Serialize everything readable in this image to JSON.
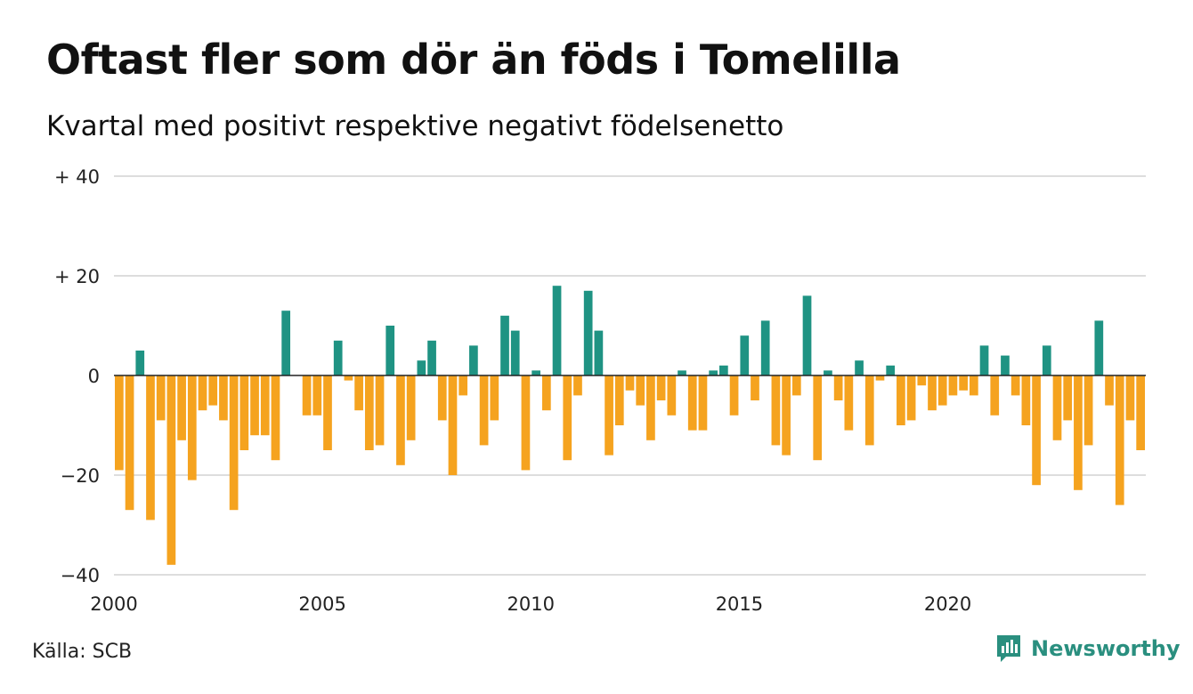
{
  "header": {
    "title": "Oftast fler som dör än föds i Tomelilla",
    "subtitle": "Kvartal med positivt respektive negativt födelsenetto"
  },
  "footer": {
    "source": "Källa: SCB",
    "brand": "Newsworthy",
    "brand_icon": "newsworthy-logo-icon"
  },
  "colors": {
    "positive": "#1f9383",
    "negative": "#f5a31f",
    "grid": "#dddddd",
    "zero_line": "#222222"
  },
  "chart_data": {
    "type": "bar",
    "title": "Oftast fler som dör än föds i Tomelilla",
    "subtitle": "Kvartal med positivt respektive negativt födelsenetto",
    "xlabel": "",
    "ylabel": "",
    "x_start": 2000,
    "periods_per_year": 4,
    "ylim": [
      -40,
      40
    ],
    "grid": true,
    "legend": "none",
    "y_ticks": [
      {
        "value": 40,
        "label": "+ 40"
      },
      {
        "value": 20,
        "label": "+ 20"
      },
      {
        "value": 0,
        "label": "0"
      },
      {
        "value": -20,
        "label": "−20"
      },
      {
        "value": -40,
        "label": "−40"
      }
    ],
    "x_ticks": [
      {
        "value": 2000,
        "label": "2000"
      },
      {
        "value": 2005,
        "label": "2005"
      },
      {
        "value": 2010,
        "label": "2010"
      },
      {
        "value": 2015,
        "label": "2015"
      },
      {
        "value": 2020,
        "label": "2020"
      }
    ],
    "values": [
      -19,
      -27,
      5,
      -29,
      -9,
      -38,
      -13,
      -21,
      -7,
      -6,
      -9,
      -27,
      -15,
      -12,
      -12,
      -17,
      13,
      0,
      -8,
      -8,
      -15,
      7,
      -1,
      -7,
      -15,
      -14,
      10,
      -18,
      -13,
      3,
      7,
      -9,
      -20,
      -4,
      6,
      -14,
      -9,
      12,
      9,
      -19,
      1,
      -7,
      18,
      -17,
      -4,
      17,
      9,
      -16,
      -10,
      -3,
      -6,
      -13,
      -5,
      -8,
      1,
      -11,
      -11,
      1,
      2,
      -8,
      8,
      -5,
      11,
      -14,
      -16,
      -4,
      16,
      -17,
      1,
      -5,
      -11,
      3,
      -14,
      -1,
      2,
      -10,
      -9,
      -2,
      -7,
      -6,
      -4,
      -3,
      -4,
      6,
      -8,
      4,
      -4,
      -10,
      -22,
      6,
      -13,
      -9,
      -23,
      -14,
      11,
      -6,
      -26,
      -9,
      -15
    ]
  }
}
